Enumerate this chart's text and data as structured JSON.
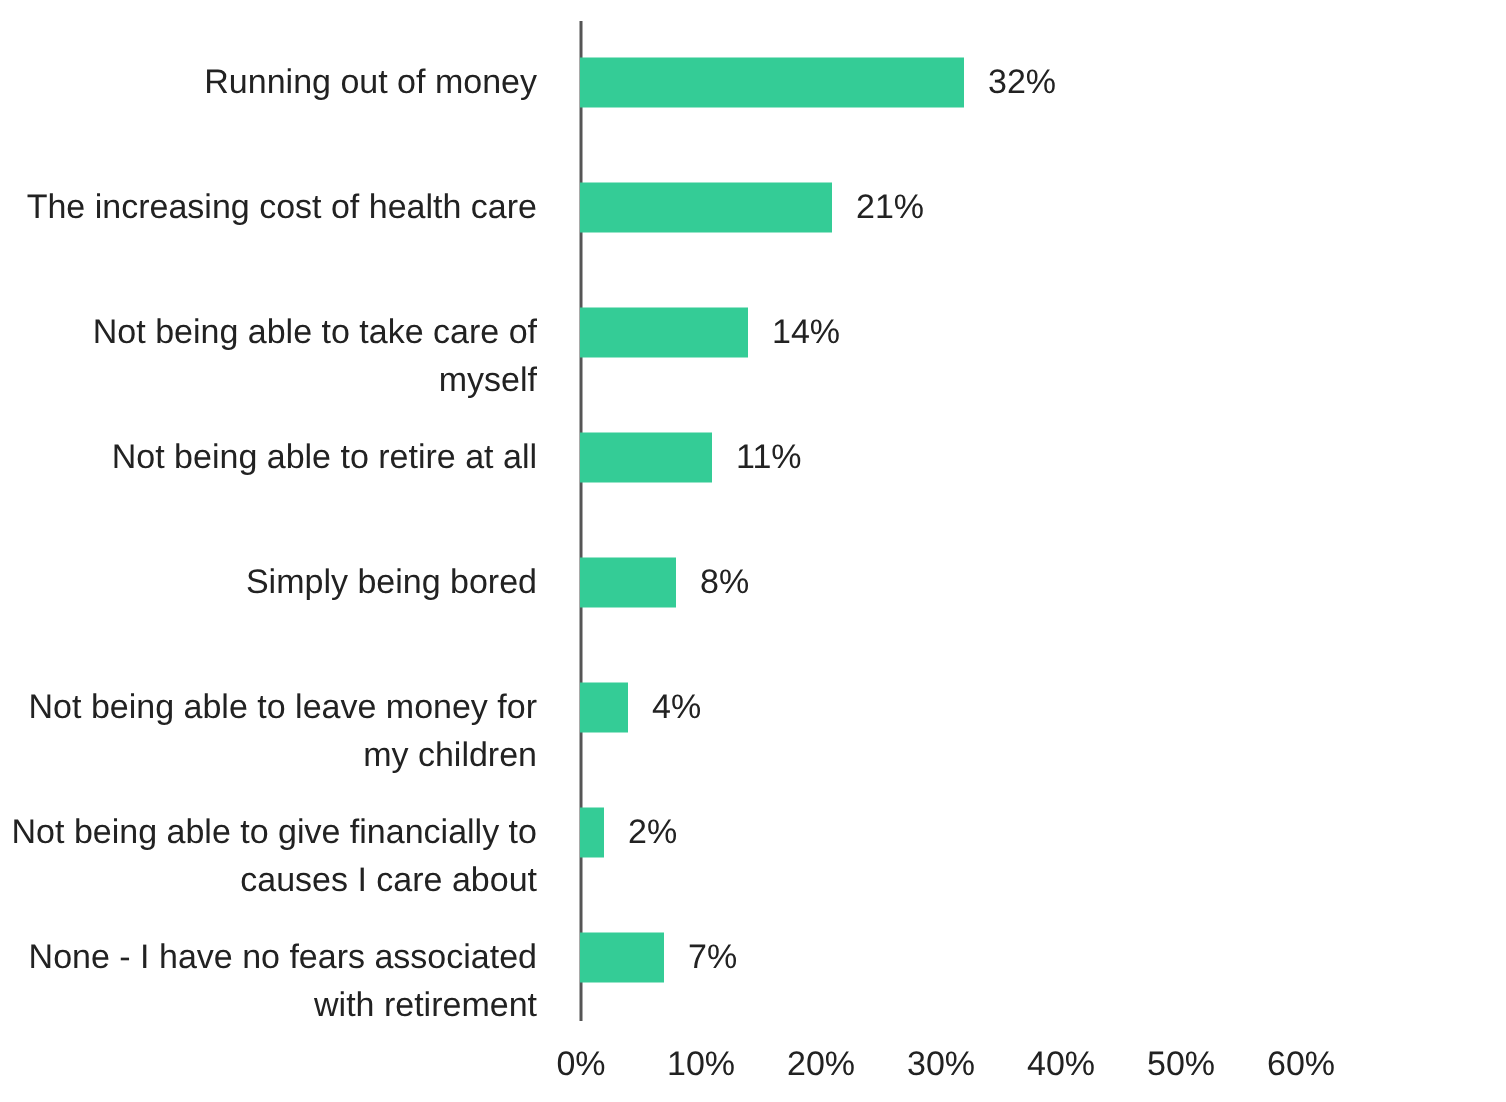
{
  "chart_data": {
    "type": "bar",
    "orientation": "horizontal",
    "categories": [
      "Running out of money",
      "The increasing cost of health care",
      "Not being able to take care of\nmyself",
      "Not being able to retire at all",
      "Simply being bored",
      "Not being able to leave money for\nmy children",
      "Not being able to give financially to\ncauses I care about",
      "None - I have no fears associated\nwith retirement"
    ],
    "values": [
      32,
      21,
      14,
      11,
      8,
      4,
      2,
      7
    ],
    "value_labels": [
      "32%",
      "21%",
      "14%",
      "11%",
      "8%",
      "4%",
      "2%",
      "7%"
    ],
    "color": "#34cc96",
    "xlim": [
      0,
      60
    ],
    "xticks": [
      {
        "value": 0,
        "label": "0%"
      },
      {
        "value": 10,
        "label": "10%"
      },
      {
        "value": 20,
        "label": "20%"
      },
      {
        "value": 30,
        "label": "30%"
      },
      {
        "value": 40,
        "label": "40%"
      },
      {
        "value": 50,
        "label": "50%"
      },
      {
        "value": 60,
        "label": "60%"
      }
    ],
    "grid": false
  }
}
